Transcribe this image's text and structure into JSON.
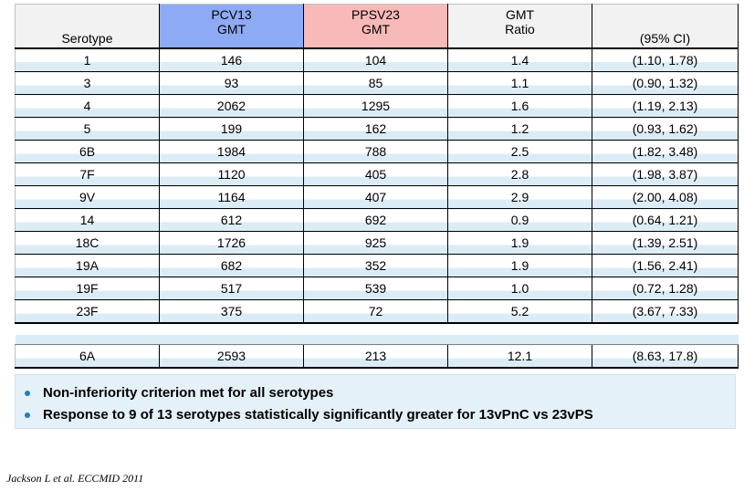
{
  "table": {
    "headers": {
      "serotype": "Serotype",
      "pcv13_line1": "PCV13",
      "pcv13_line2": "GMT",
      "ppsv23_line1": "PPSV23",
      "ppsv23_line2": "GMT",
      "ratio_line1": "GMT",
      "ratio_line2": "Ratio",
      "ci": "(95% CI)"
    },
    "rows": [
      {
        "serotype": "1",
        "pcv13": "146",
        "ppsv23": "104",
        "ratio": "1.4",
        "ci": "(1.10, 1.78)"
      },
      {
        "serotype": "3",
        "pcv13": "93",
        "ppsv23": "85",
        "ratio": "1.1",
        "ci": "(0.90, 1.32)"
      },
      {
        "serotype": "4",
        "pcv13": "2062",
        "ppsv23": "1295",
        "ratio": "1.6",
        "ci": "(1.19, 2.13)"
      },
      {
        "serotype": "5",
        "pcv13": "199",
        "ppsv23": "162",
        "ratio": "1.2",
        "ci": "(0.93, 1.62)"
      },
      {
        "serotype": "6B",
        "pcv13": "1984",
        "ppsv23": "788",
        "ratio": "2.5",
        "ci": "(1.82, 3.48)"
      },
      {
        "serotype": "7F",
        "pcv13": "1120",
        "ppsv23": "405",
        "ratio": "2.8",
        "ci": "(1.98, 3.87)"
      },
      {
        "serotype": "9V",
        "pcv13": "1164",
        "ppsv23": "407",
        "ratio": "2.9",
        "ci": "(2.00, 4.08)"
      },
      {
        "serotype": "14",
        "pcv13": "612",
        "ppsv23": "692",
        "ratio": "0.9",
        "ci": "(0.64, 1.21)"
      },
      {
        "serotype": "18C",
        "pcv13": "1726",
        "ppsv23": "925",
        "ratio": "1.9",
        "ci": "(1.39, 2.51)"
      },
      {
        "serotype": "19A",
        "pcv13": "682",
        "ppsv23": "352",
        "ratio": "1.9",
        "ci": "(1.56, 2.41)"
      },
      {
        "serotype": "19F",
        "pcv13": "517",
        "ppsv23": "539",
        "ratio": "1.0",
        "ci": "(0.72, 1.28)"
      },
      {
        "serotype": "23F",
        "pcv13": "375",
        "ppsv23": "72",
        "ratio": "5.2",
        "ci": "(3.67, 7.33)"
      }
    ],
    "extra_row": {
      "serotype": "6A",
      "pcv13": "2593",
      "ppsv23": "213",
      "ratio": "12.1",
      "ci": "(8.63, 17.8)"
    }
  },
  "notes": [
    "Non-inferiority criterion met for all serotypes",
    "Response to 9 of 13 serotypes statistically significantly  greater for 13vPnC vs 23vPS"
  ],
  "citation": "Jackson L et al. ECCMID 2011",
  "colors": {
    "pcv13_header": "#8eaaf4",
    "ppsv23_header": "#f8b9b9",
    "row_stripe": "#dcecf7",
    "notes_background": "#e4f1f9",
    "bullet": "#1f7fc4"
  }
}
